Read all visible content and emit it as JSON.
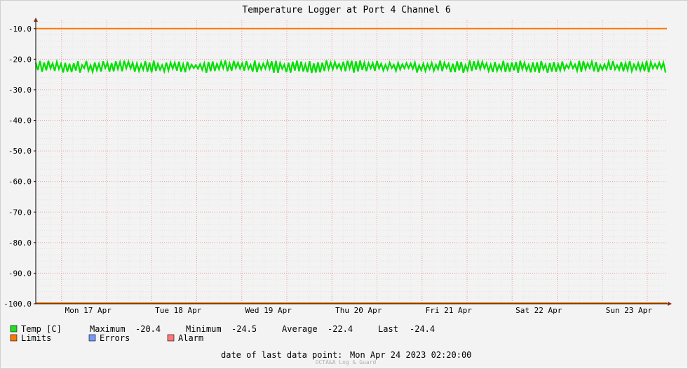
{
  "chart_data": {
    "type": "line",
    "title": "Temperature Logger at Port 4 Channel 6",
    "ylim": [
      -100.0,
      -7.3
    ],
    "yticks": [
      -10.0,
      -20.0,
      -30.0,
      -40.0,
      -50.0,
      -60.0,
      -70.0,
      -80.0,
      -90.0,
      -100.0
    ],
    "ytick_labels": [
      "-10.0",
      "-20.0",
      "-30.0",
      "-40.0",
      "-50.0",
      "-60.0",
      "-70.0",
      "-80.0",
      "-90.0",
      "-100.0"
    ],
    "x_days": [
      "Mon 17 Apr",
      "Tue 18 Apr",
      "Wed 19 Apr",
      "Thu 20 Apr",
      "Fri 21 Apr",
      "Sat 22 Apr",
      "Sun 23 Apr"
    ],
    "limits": {
      "upper": -10.0,
      "lower": -100.0
    },
    "series": [
      {
        "name": "Temp [C]",
        "color": "#00e000",
        "min": -24.5,
        "max": -20.4,
        "mean": -22.4,
        "last": -24.4
      }
    ],
    "grid": true
  },
  "legend": {
    "temp": {
      "label": "Temp [C]",
      "color": "#22dd22"
    },
    "maximum_label": "Maximum",
    "maximum_value": "-20.4",
    "minimum_label": "Minimum",
    "minimum_value": "-24.5",
    "average_label": "Average",
    "average_value": "-22.4",
    "last_label": "Last",
    "last_value": "-24.4",
    "limits": {
      "label": "Limits",
      "color": "#ff7700"
    },
    "errors": {
      "label": "Errors",
      "color": "#7799ff"
    },
    "alarm": {
      "label": "Alarm",
      "color": "#ff7777"
    }
  },
  "footer": {
    "last_point_label": "date of last data point:",
    "last_point_value": "Mon Apr 24 2023 02:20:00",
    "watermark": "OCTA&A Log & Guard"
  }
}
